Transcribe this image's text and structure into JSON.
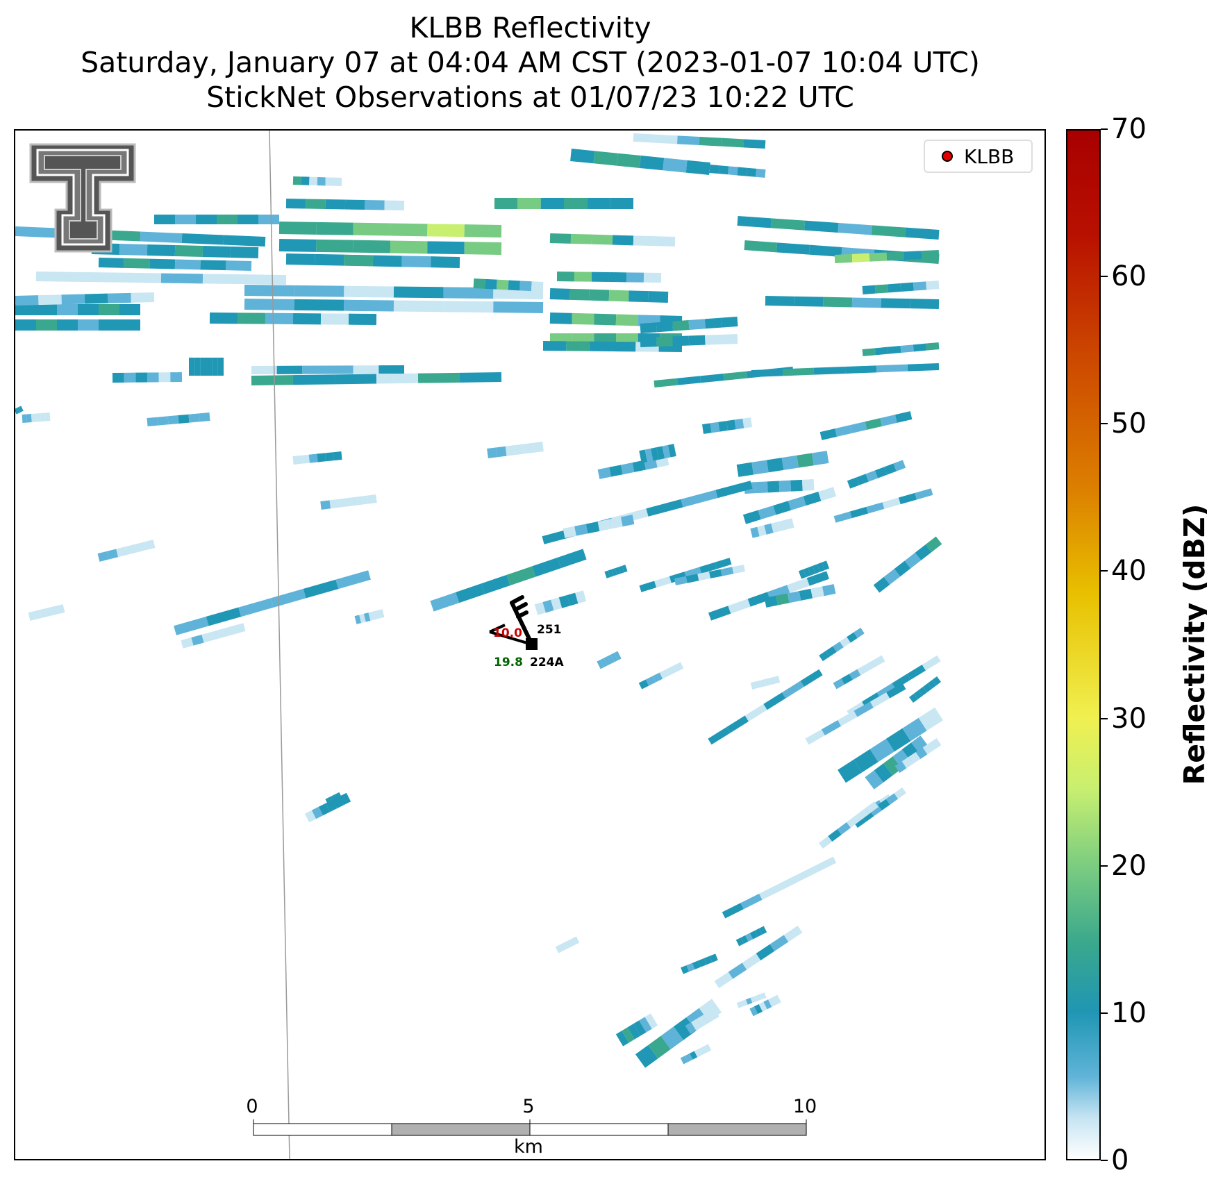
{
  "title": {
    "line1": "KLBB Reflectivity",
    "line2": "Saturday, January 07 at 04:04 AM CST (2023-01-07 10:04 UTC)",
    "line3": "StickNet Observations at 01/07/23 10:22 UTC"
  },
  "legend": {
    "label": "KLBB",
    "marker_color": "#e00000"
  },
  "colorbar": {
    "title": "Reflectivity (dBZ)",
    "ticks": [
      "0",
      "10",
      "20",
      "30",
      "40",
      "50",
      "60",
      "70"
    ]
  },
  "station": {
    "temperature": "10.0",
    "pressure": "251",
    "dewpoint": "19.8",
    "id": "224A",
    "temperature_color": "#cc0000",
    "dewpoint_color": "#006400"
  },
  "scale_bar": {
    "labels": [
      "0",
      "5",
      "10"
    ],
    "unit": "km"
  },
  "colors": {
    "light": "#c9e6f3",
    "blue": "#5fb3d8",
    "teal": "#2097b5",
    "seagreen": "#3aa88e",
    "green": "#78cb82",
    "yellowgreen": "#c8ef70"
  }
}
